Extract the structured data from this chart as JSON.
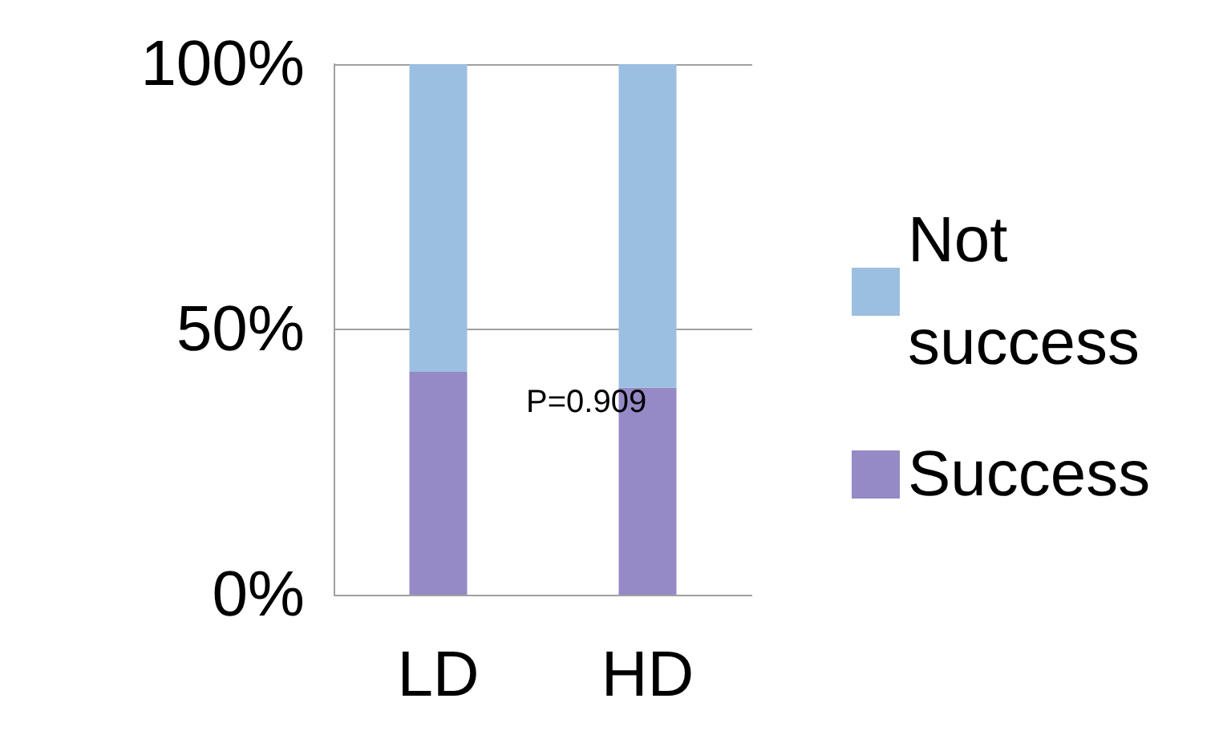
{
  "chart_data": {
    "type": "bar",
    "stacked": true,
    "categories": [
      "LD",
      "HD"
    ],
    "series": [
      {
        "name": "Success",
        "color": "#9589c6",
        "values": [
          42,
          39
        ]
      },
      {
        "name": "Not success",
        "color": "#9bbfe0",
        "values": [
          58,
          61
        ]
      }
    ],
    "ylim": [
      0,
      100
    ],
    "yticks": [
      {
        "value": 0,
        "label": "0%"
      },
      {
        "value": 50,
        "label": "50%"
      },
      {
        "value": 100,
        "label": "100%"
      }
    ],
    "grid": "y",
    "legend": "right",
    "annotations": [
      "P=0.909"
    ]
  }
}
